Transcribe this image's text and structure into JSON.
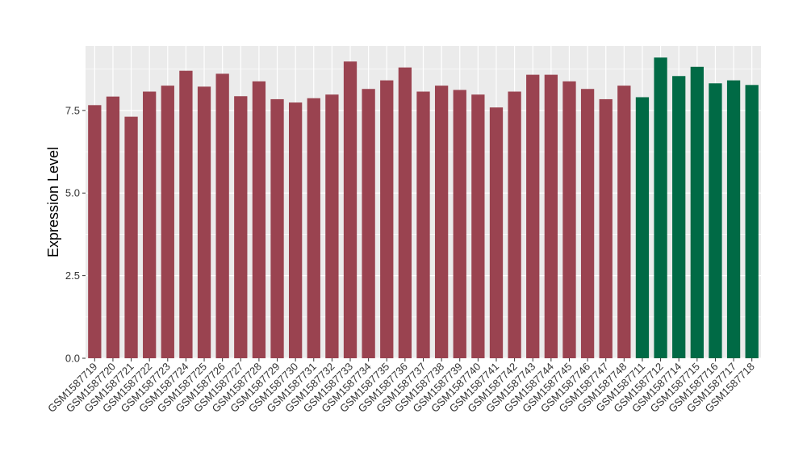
{
  "chart_data": {
    "type": "bar",
    "title": "",
    "xlabel": "",
    "ylabel": "Expression Level",
    "ylim": [
      0,
      9.45
    ],
    "yticks": [
      0.0,
      2.5,
      5.0,
      7.5
    ],
    "ytick_labels": [
      "0.0",
      "2.5",
      "5.0",
      "7.5"
    ],
    "grid": true,
    "legend": "none",
    "colors": {
      "group1": "#9a4350",
      "group2": "#006a45",
      "panel": "#ebebeb",
      "grid": "#ffffff"
    },
    "categories": [
      "GSM1587719",
      "GSM1587720",
      "GSM1587721",
      "GSM1587722",
      "GSM1587723",
      "GSM1587724",
      "GSM1587725",
      "GSM1587726",
      "GSM1587727",
      "GSM1587728",
      "GSM1587729",
      "GSM1587730",
      "GSM1587731",
      "GSM1587732",
      "GSM1587733",
      "GSM1587734",
      "GSM1587735",
      "GSM1587736",
      "GSM1587737",
      "GSM1587738",
      "GSM1587739",
      "GSM1587740",
      "GSM1587741",
      "GSM1587742",
      "GSM1587743",
      "GSM1587744",
      "GSM1587745",
      "GSM1587746",
      "GSM1587747",
      "GSM1587748",
      "GSM1587711",
      "GSM1587712",
      "GSM1587714",
      "GSM1587715",
      "GSM1587716",
      "GSM1587717",
      "GSM1587718"
    ],
    "values": [
      7.66,
      7.92,
      7.31,
      8.07,
      8.25,
      8.7,
      8.22,
      8.61,
      7.93,
      8.38,
      7.84,
      7.74,
      7.87,
      7.98,
      8.98,
      8.15,
      8.41,
      8.8,
      8.07,
      8.25,
      8.12,
      7.98,
      7.59,
      8.07,
      8.58,
      8.58,
      8.38,
      8.15,
      7.84,
      8.25,
      7.9,
      9.1,
      8.54,
      8.82,
      8.32,
      8.41,
      8.27
    ],
    "groups": [
      "group1",
      "group1",
      "group1",
      "group1",
      "group1",
      "group1",
      "group1",
      "group1",
      "group1",
      "group1",
      "group1",
      "group1",
      "group1",
      "group1",
      "group1",
      "group1",
      "group1",
      "group1",
      "group1",
      "group1",
      "group1",
      "group1",
      "group1",
      "group1",
      "group1",
      "group1",
      "group1",
      "group1",
      "group1",
      "group1",
      "group2",
      "group2",
      "group2",
      "group2",
      "group2",
      "group2",
      "group2"
    ]
  }
}
